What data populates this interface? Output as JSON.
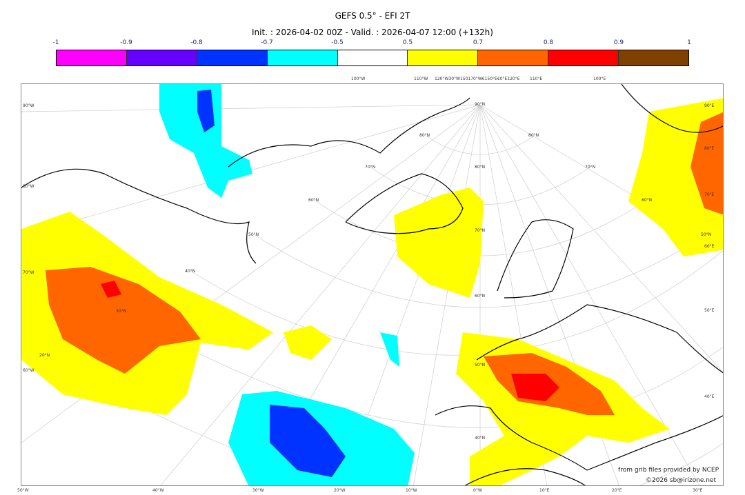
{
  "title": "GEFS 0.5° - EFI 2T",
  "subtitle": "Init. : 2026-04-02 00Z - Valid. : 2026-04-07 12:00 (+132h)",
  "colorbar": {
    "ticks": [
      "-1",
      "-0.9",
      "-0.8",
      "-0.7",
      "-0.5",
      "0.5",
      "0.7",
      "0.8",
      "0.9",
      "1"
    ],
    "colors": [
      "#ff00ff",
      "#6600ff",
      "#0033ff",
      "#00ffff",
      "#ffffff",
      "#ffff00",
      "#ff6600",
      "#ff0000",
      "#804000"
    ]
  },
  "axes": {
    "left": [
      "90°W",
      "80°W",
      "70°W",
      "60°W"
    ],
    "right": [
      "90°E",
      "80°E",
      "70°E",
      "60°E",
      "50°E",
      "40°E"
    ],
    "bottom": [
      "50°W",
      "40°W",
      "30°W",
      "20°W",
      "10°W",
      "0°W",
      "10°E",
      "20°E",
      "30°E"
    ],
    "top": [
      "100°W",
      "110°W",
      "120°W30°W150170°W€150°E€0°E120°E",
      "110°E",
      "100°E"
    ],
    "lat_labels": [
      "90°N",
      "80°N",
      "70°N",
      "60°N",
      "50°N",
      "40°N",
      "30°N",
      "20°N",
      "80°N",
      "70°N",
      "60°N",
      "50°N",
      "80°N",
      "70°N",
      "60°N",
      "50°N",
      "40°N"
    ]
  },
  "credits": {
    "source": "from grib files provided by NCEP",
    "copyright": "©2026 sb@irizone.net"
  }
}
